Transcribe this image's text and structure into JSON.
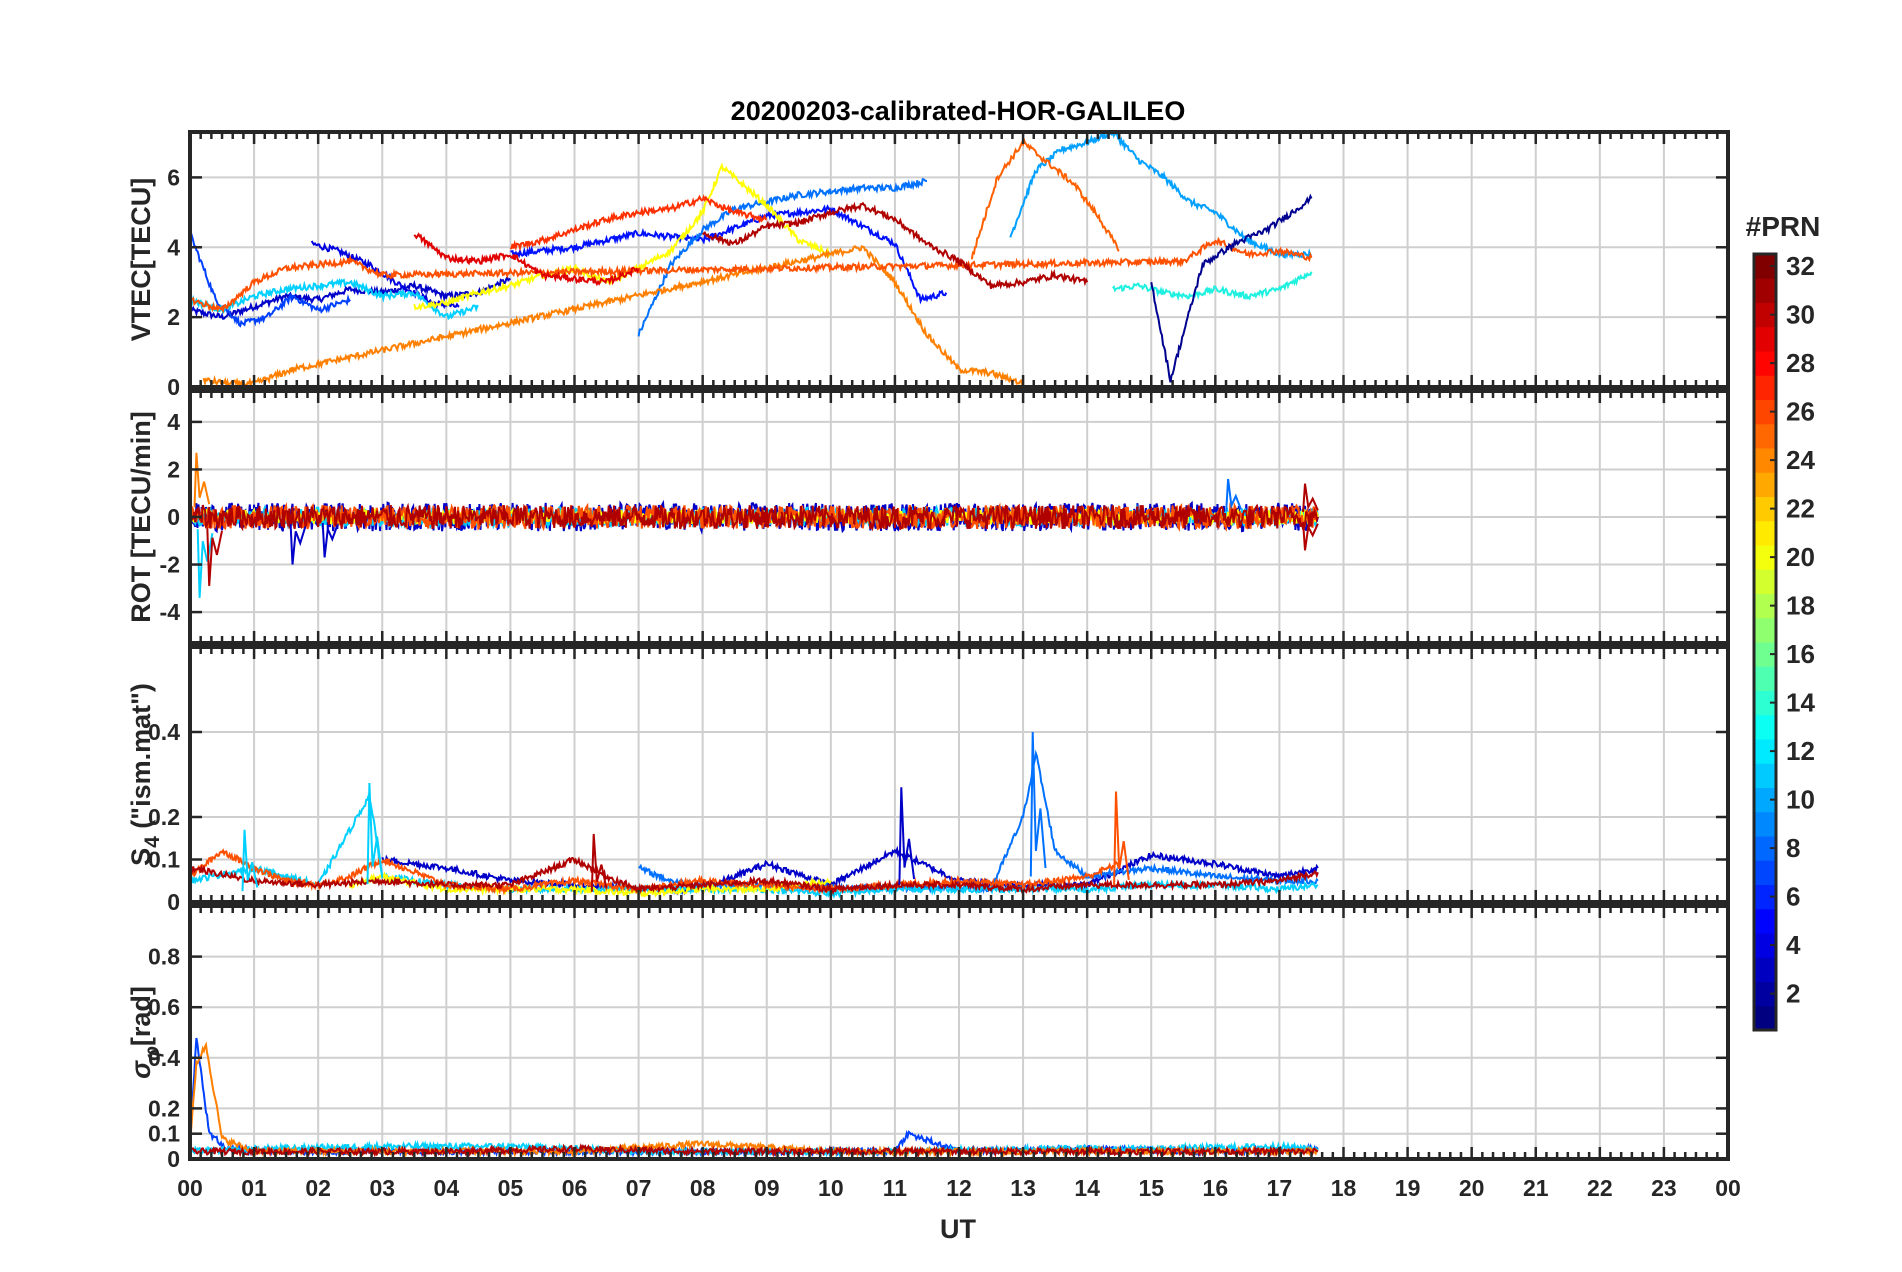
{
  "figure": {
    "title": "20200203-calibrated-HOR-GALILEO",
    "xlabel": "UT",
    "x_tick_labels": [
      "00",
      "01",
      "02",
      "03",
      "04",
      "05",
      "06",
      "07",
      "08",
      "09",
      "10",
      "11",
      "12",
      "13",
      "14",
      "15",
      "16",
      "17",
      "18",
      "19",
      "20",
      "21",
      "22",
      "23",
      "00"
    ]
  },
  "colorbar": {
    "label": "#PRN",
    "tick_labels": [
      "2",
      "4",
      "6",
      "8",
      "10",
      "12",
      "14",
      "16",
      "18",
      "20",
      "22",
      "24",
      "26",
      "28",
      "30",
      "32"
    ],
    "colormap": "jet",
    "range": [
      1,
      32
    ]
  },
  "chart_data": [
    {
      "type": "line",
      "panel": "vtec",
      "ylabel": "VTEC[TECU]",
      "ylim": [
        0,
        7.3
      ],
      "yticks": [
        0,
        2,
        4,
        6
      ],
      "xlim": [
        0,
        24
      ],
      "x_unit": "hours UT",
      "grid": true,
      "series": [
        {
          "prn": 2,
          "color": "#0000c8",
          "x": [
            0,
            0.5,
            1,
            1.5,
            2,
            2.5,
            3,
            3.5,
            4,
            4.5,
            5
          ],
          "values": [
            2.2,
            2.0,
            2.3,
            2.6,
            2.5,
            2.8,
            2.7,
            2.9,
            2.6,
            2.7,
            3.1
          ]
        },
        {
          "prn": 3,
          "color": "#0000e0",
          "x": [
            1.9,
            2.3,
            2.8,
            3.3,
            3.8,
            4.2
          ],
          "values": [
            4.1,
            3.9,
            3.5,
            2.9,
            2.4,
            2.3
          ]
        },
        {
          "prn": 4,
          "color": "#0010ff",
          "x": [
            5,
            6,
            7,
            8,
            9,
            10,
            11,
            11.4,
            11.8
          ],
          "values": [
            3.8,
            4.0,
            4.4,
            4.2,
            4.9,
            5.1,
            4.1,
            2.5,
            2.7
          ]
        },
        {
          "prn": 6,
          "color": "#0040ff",
          "x": [
            0,
            0.4,
            0.8,
            1.2,
            1.6,
            2,
            2.5
          ],
          "values": [
            4.4,
            2.5,
            1.8,
            2.0,
            2.6,
            2.2,
            2.5
          ]
        },
        {
          "prn": 8,
          "color": "#0070ff",
          "x": [
            7,
            7.5,
            8,
            8.5,
            9,
            9.5,
            10,
            10.5,
            11,
            11.5
          ],
          "values": [
            1.5,
            3.5,
            4.5,
            5.1,
            5.3,
            5.5,
            5.6,
            5.7,
            5.7,
            5.9
          ]
        },
        {
          "prn": 10,
          "color": "#00a0ff",
          "x": [
            12.8,
            13.2,
            13.6,
            14,
            14.4,
            14.8,
            15.2,
            15.6,
            16,
            16.5,
            17,
            17.5
          ],
          "values": [
            4.3,
            6.2,
            6.8,
            7.0,
            7.3,
            6.5,
            6.0,
            5.3,
            5.0,
            4.2,
            3.8,
            3.8
          ]
        },
        {
          "prn": 12,
          "color": "#00d0ff",
          "x": [
            0,
            0.5,
            1,
            1.5,
            2,
            2.5,
            3,
            3.5,
            4,
            4.5
          ],
          "values": [
            2.5,
            2.2,
            2.6,
            2.8,
            2.9,
            3.0,
            2.6,
            2.7,
            2.0,
            2.3
          ]
        },
        {
          "prn": 13,
          "color": "#20f0e0",
          "x": [
            14.4,
            14.8,
            15.2,
            15.6,
            16,
            16.5,
            17,
            17.5
          ],
          "values": [
            2.8,
            2.9,
            2.7,
            2.6,
            2.8,
            2.6,
            2.8,
            3.3
          ]
        },
        {
          "prn": 20,
          "color": "#ffff00",
          "x": [
            3.5,
            4,
            4.5,
            5,
            5.5,
            6,
            6.5,
            7,
            7.5,
            8,
            8.3,
            9,
            9.5,
            10
          ],
          "values": [
            2.3,
            2.4,
            2.7,
            2.9,
            3.2,
            3.4,
            3.0,
            3.4,
            3.9,
            5.0,
            6.3,
            5.2,
            4.2,
            3.8
          ]
        },
        {
          "prn": 23,
          "color": "#ff8000",
          "x": [
            0.2,
            0.6,
            1.0,
            1.6,
            10.5,
            11,
            11.5,
            12,
            12.5,
            13
          ],
          "values": [
            0.2,
            0.1,
            0.1,
            0.5,
            4.0,
            3.0,
            1.5,
            0.5,
            0.4,
            0.1
          ]
        },
        {
          "prn": 24,
          "color": "#ff6000",
          "x": [
            12.2,
            12.6,
            13,
            13.4,
            13.8,
            14.2,
            14.5
          ],
          "values": [
            3.7,
            6.0,
            7.0,
            6.4,
            5.8,
            4.8,
            3.9
          ]
        },
        {
          "prn": 25,
          "color": "#ff5000",
          "x": [
            0,
            0.5,
            1,
            1.5,
            2,
            2.5,
            3,
            15.5,
            16,
            16.5,
            17,
            17.5
          ],
          "values": [
            2.5,
            2.2,
            3.0,
            3.4,
            3.5,
            3.6,
            3.2,
            3.6,
            4.2,
            3.8,
            3.9,
            3.7
          ]
        },
        {
          "prn": 27,
          "color": "#ff3000",
          "x": [
            5,
            5.5,
            6,
            6.5,
            7,
            7.5,
            8,
            8.5,
            9
          ],
          "values": [
            4.0,
            4.2,
            4.5,
            4.8,
            5.0,
            5.1,
            5.4,
            5.0,
            4.8
          ]
        },
        {
          "prn": 29,
          "color": "#e00000",
          "x": [
            3.5,
            4,
            4.5,
            5,
            5.5,
            6,
            6.5,
            7
          ],
          "values": [
            4.4,
            3.7,
            3.6,
            3.8,
            3.2,
            3.1,
            3.0,
            3.4
          ]
        },
        {
          "prn": 31,
          "color": "#b00000",
          "x": [
            8,
            8.5,
            9,
            9.5,
            10,
            10.5,
            11,
            11.5,
            12,
            12.5,
            13,
            13.5,
            14
          ],
          "values": [
            4.4,
            4.1,
            4.6,
            4.7,
            5.0,
            5.2,
            4.8,
            4.1,
            3.6,
            2.9,
            3.0,
            3.2,
            3.0
          ]
        },
        {
          "prn": 1,
          "color": "#000090",
          "x": [
            15,
            15.3,
            15.8,
            16.3,
            16.8,
            17.2,
            17.5
          ],
          "values": [
            3.0,
            0.2,
            3.5,
            4.1,
            4.5,
            5.0,
            5.4
          ]
        }
      ]
    },
    {
      "type": "line",
      "panel": "rot",
      "ylabel": "ROT [TECU/min]",
      "ylim": [
        -5.3,
        5.3
      ],
      "yticks": [
        -4,
        -2,
        0,
        2,
        4
      ],
      "xlim": [
        0,
        24
      ],
      "x_unit": "hours UT",
      "grid": true,
      "series": [
        {
          "prn": 2,
          "color": "#0000c8",
          "x": [
            0,
            17.6
          ],
          "values": [
            0,
            0
          ],
          "amplitude": 0.6
        },
        {
          "prn": 12,
          "color": "#00d0ff",
          "x": [
            0,
            17.6
          ],
          "values": [
            0,
            0
          ],
          "amplitude": 0.4
        },
        {
          "prn": 20,
          "color": "#ffff00",
          "x": [
            0,
            17.6
          ],
          "values": [
            0,
            0
          ],
          "amplitude": 0.3
        },
        {
          "prn": 25,
          "color": "#ff5000",
          "x": [
            0,
            17.6
          ],
          "values": [
            0,
            0
          ],
          "amplitude": 0.5
        },
        {
          "prn": 31,
          "color": "#b00000",
          "x": [
            0,
            17.6
          ],
          "values": [
            0,
            0
          ],
          "amplitude": 0.5
        }
      ],
      "peaks": [
        {
          "x": 0.15,
          "value": -3.4,
          "color": "#00d0ff"
        },
        {
          "x": 0.3,
          "value": -2.9,
          "color": "#b00000"
        },
        {
          "x": 0.1,
          "value": 2.7,
          "color": "#ff8000"
        },
        {
          "x": 1.6,
          "value": -2.0,
          "color": "#0000c8"
        },
        {
          "x": 2.1,
          "value": -1.7,
          "color": "#0000c8"
        },
        {
          "x": 16.2,
          "value": 1.6,
          "color": "#0070ff"
        },
        {
          "x": 17.4,
          "value": 1.4,
          "color": "#b00000"
        },
        {
          "x": 17.4,
          "value": -1.4,
          "color": "#b00000"
        }
      ]
    },
    {
      "type": "line",
      "panel": "s4",
      "ylabel": "S4 (\"ism.mat\")",
      "ylabel_main": "S",
      "ylabel_sub": "4",
      "ylabel_rest": " (\"ism.mat\")",
      "ylim": [
        0,
        0.6
      ],
      "yticks": [
        0,
        0.1,
        0.2,
        0.4
      ],
      "xlim": [
        0,
        24
      ],
      "x_unit": "hours UT",
      "grid": true,
      "series": [
        {
          "prn": 2,
          "color": "#0000c8",
          "x": [
            3,
            4,
            5,
            6,
            7,
            8,
            9,
            10,
            11,
            12,
            13,
            14,
            15,
            16,
            17,
            17.6
          ],
          "values": [
            0.1,
            0.08,
            0.05,
            0.04,
            0.03,
            0.03,
            0.09,
            0.04,
            0.12,
            0.05,
            0.04,
            0.04,
            0.11,
            0.09,
            0.06,
            0.08
          ]
        },
        {
          "prn": 8,
          "color": "#0070ff",
          "x": [
            7,
            7.5,
            8,
            12.5,
            13,
            13.2,
            13.5,
            14,
            15,
            16,
            17,
            17.6
          ],
          "values": [
            0.08,
            0.05,
            0.04,
            0.03,
            0.2,
            0.35,
            0.12,
            0.06,
            0.08,
            0.06,
            0.05,
            0.05
          ]
        },
        {
          "prn": 12,
          "color": "#00d0ff",
          "x": [
            0,
            1,
            2,
            2.8,
            3,
            4,
            5,
            6,
            7,
            8,
            9,
            10,
            11,
            12,
            13,
            14,
            15,
            16,
            17,
            17.6
          ],
          "values": [
            0.05,
            0.08,
            0.04,
            0.25,
            0.06,
            0.04,
            0.03,
            0.03,
            0.03,
            0.03,
            0.03,
            0.02,
            0.03,
            0.03,
            0.03,
            0.03,
            0.04,
            0.04,
            0.03,
            0.04
          ]
        },
        {
          "prn": 20,
          "color": "#ffff00",
          "x": [
            2.5,
            3,
            4,
            5,
            6,
            7,
            8,
            9,
            10
          ],
          "values": [
            0.04,
            0.06,
            0.03,
            0.03,
            0.03,
            0.02,
            0.03,
            0.03,
            0.05
          ]
        },
        {
          "prn": 25,
          "color": "#ff5000",
          "x": [
            0,
            0.5,
            1,
            1.5,
            2,
            2.5,
            3,
            4,
            5,
            6,
            7,
            8,
            9,
            10,
            11,
            12,
            13,
            14,
            14.5
          ],
          "values": [
            0.06,
            0.12,
            0.08,
            0.05,
            0.04,
            0.06,
            0.1,
            0.04,
            0.03,
            0.05,
            0.03,
            0.05,
            0.04,
            0.03,
            0.04,
            0.05,
            0.04,
            0.06,
            0.09
          ]
        },
        {
          "prn": 31,
          "color": "#b00000",
          "x": [
            0,
            1,
            2,
            3,
            4,
            5,
            6,
            6.5,
            7,
            8,
            9,
            10,
            11,
            12,
            13,
            14,
            15,
            16,
            17,
            17.6
          ],
          "values": [
            0.08,
            0.05,
            0.04,
            0.05,
            0.04,
            0.04,
            0.1,
            0.06,
            0.03,
            0.04,
            0.05,
            0.03,
            0.04,
            0.04,
            0.03,
            0.04,
            0.04,
            0.04,
            0.05,
            0.07
          ]
        }
      ],
      "peaks": [
        {
          "x": 2.8,
          "value": 0.28,
          "color": "#00d0ff"
        },
        {
          "x": 11.1,
          "value": 0.27,
          "color": "#0000c8"
        },
        {
          "x": 13.15,
          "value": 0.4,
          "color": "#0070ff"
        },
        {
          "x": 14.45,
          "value": 0.26,
          "color": "#ff5000"
        },
        {
          "x": 0.85,
          "value": 0.17,
          "color": "#00d0ff"
        },
        {
          "x": 6.3,
          "value": 0.16,
          "color": "#b00000"
        }
      ]
    },
    {
      "type": "line",
      "panel": "sigma_phi",
      "ylabel": "σφ[rad]",
      "ylabel_main": "σ",
      "ylabel_sub": "φ",
      "ylabel_rest": "[rad]",
      "ylim": [
        0,
        1.0
      ],
      "yticks": [
        0,
        0.1,
        0.2,
        0.4,
        0.6,
        0.8
      ],
      "xlim": [
        0,
        24
      ],
      "x_unit": "hours UT",
      "grid": true,
      "series": [
        {
          "prn": 6,
          "color": "#0040ff",
          "x": [
            0,
            0.1,
            0.3,
            0.6,
            1,
            3,
            6,
            9,
            11,
            11.2,
            12,
            14,
            16,
            17.6
          ],
          "values": [
            0.05,
            0.48,
            0.1,
            0.04,
            0.03,
            0.03,
            0.03,
            0.03,
            0.03,
            0.1,
            0.03,
            0.04,
            0.03,
            0.04
          ]
        },
        {
          "prn": 12,
          "color": "#00d0ff",
          "x": [
            0,
            1,
            3,
            5,
            7,
            9,
            11,
            13,
            15,
            17,
            17.6
          ],
          "values": [
            0.03,
            0.04,
            0.05,
            0.05,
            0.03,
            0.03,
            0.03,
            0.04,
            0.04,
            0.05,
            0.04
          ]
        },
        {
          "prn": 23,
          "color": "#ff8000",
          "x": [
            0,
            0.1,
            0.25,
            0.5,
            0.8,
            1,
            3,
            6,
            8,
            10,
            12,
            14,
            16,
            17.6
          ],
          "values": [
            0.05,
            0.38,
            0.45,
            0.08,
            0.05,
            0.03,
            0.03,
            0.03,
            0.06,
            0.03,
            0.03,
            0.03,
            0.03,
            0.03
          ]
        },
        {
          "prn": 31,
          "color": "#b00000",
          "x": [
            0,
            2,
            4,
            6,
            8,
            10,
            12,
            14,
            16,
            17.6
          ],
          "values": [
            0.03,
            0.03,
            0.03,
            0.04,
            0.03,
            0.03,
            0.03,
            0.03,
            0.03,
            0.03
          ]
        }
      ]
    }
  ]
}
